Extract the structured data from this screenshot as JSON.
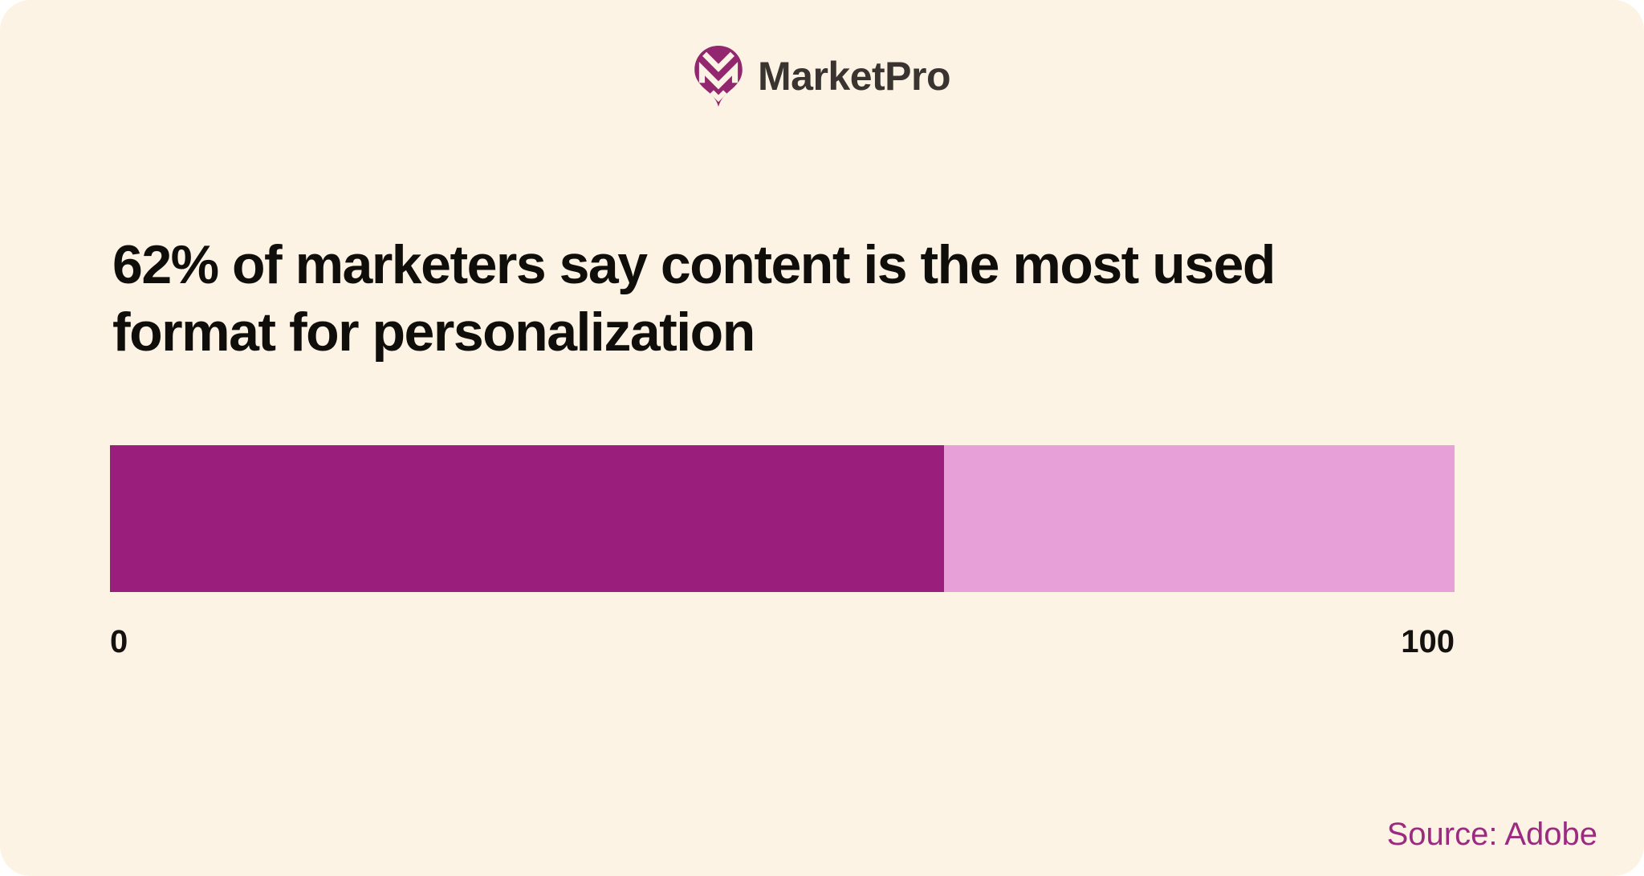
{
  "page": {
    "outer_background": "#FFFFFF",
    "card_background": "#FCF3E4"
  },
  "brand": {
    "name": "MarketPro",
    "icon": "marketpro-pin-monogram-icon",
    "icon_color": "#92276F",
    "name_color": "#3A3430"
  },
  "headline": {
    "lines": [
      "62% of marketers say content is the most used",
      "format for personalization"
    ],
    "color": "#100E0B"
  },
  "chart_data": {
    "type": "bar",
    "orientation": "horizontal",
    "title": "62% of marketers say content is the most used format for personalization",
    "series": [
      {
        "name": "Marketers who say content is the most used format for personalization",
        "value": 62
      }
    ],
    "xlim": [
      0,
      100
    ],
    "tick_labels": [
      "0",
      "100"
    ],
    "bar_color": "#9A1F7C",
    "track_color": "#E7A0D8",
    "tick_color": "#14110E",
    "grid": false,
    "legend": false,
    "data_labels": false
  },
  "source": {
    "text": "Source: Adobe",
    "color": "#9B2B80"
  }
}
